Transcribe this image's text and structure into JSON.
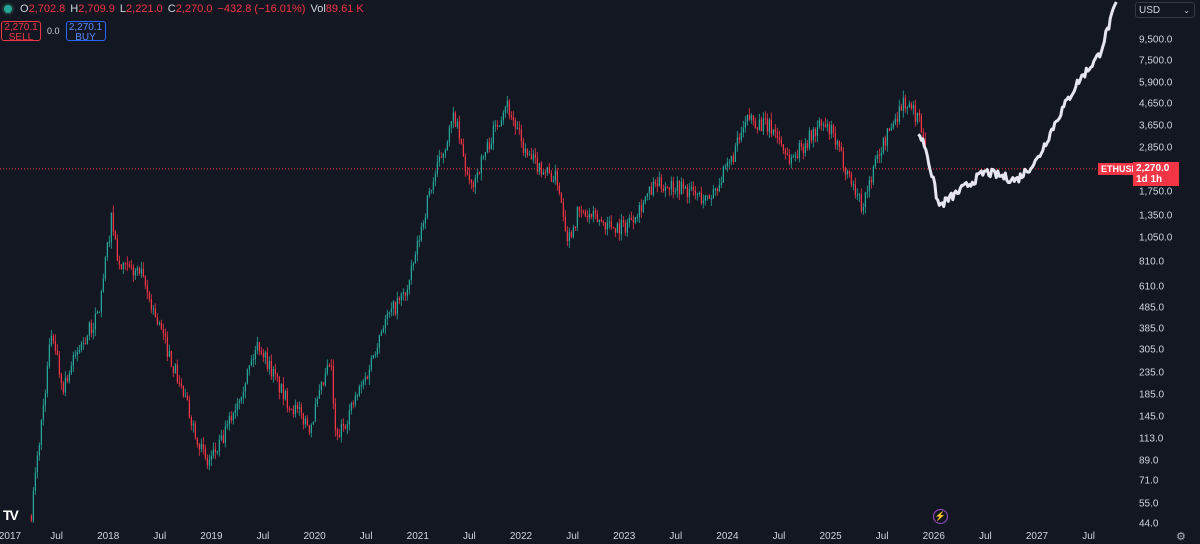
{
  "legend": {
    "open_label": "O",
    "open": "2,702.8",
    "high_label": "H",
    "high": "2,709.9",
    "low_label": "L",
    "low": "2,221.0",
    "close_label": "C",
    "close": "2,270.0",
    "change": "−432.8 (−16.01%)",
    "vol_label": "Vol",
    "vol": "89.61 K"
  },
  "trade": {
    "sell_price": "2,270.1",
    "sell_label": "SELL",
    "spread": "0.0",
    "buy_price": "2,270.1",
    "buy_label": "BUY"
  },
  "currency": "USD",
  "symbol_tag": "ETHUSD",
  "price_tag": "2,270.0",
  "countdown": "1d 1h",
  "colors": {
    "up": "#26a69a",
    "down": "#f23645",
    "projection": "#e6e6f0",
    "bg": "#131722"
  },
  "chart_data": {
    "type": "candlestick",
    "symbol": "ETHUSD",
    "scale": "log",
    "current_price": 2270,
    "y_ticks": [
      9500,
      7500,
      5900,
      4650,
      3650,
      2850,
      1750,
      1350,
      1050,
      810,
      610,
      485,
      385,
      305,
      235,
      185,
      145,
      113,
      89,
      71,
      55,
      44
    ],
    "y_tick_labels": [
      "9,500.0",
      "7,500.0",
      "5,900.0",
      "4,650.0",
      "3,650.0",
      "2,850.0",
      "1,750.0",
      "1,350.0",
      "1,050.0",
      "810.0",
      "610.0",
      "485.0",
      "385.0",
      "305.0",
      "235.0",
      "185.0",
      "145.0",
      "113.0",
      "89.0",
      "71.0",
      "55.0",
      "44.0"
    ],
    "x_ticks": [
      {
        "t": 2017.0,
        "label": "2017"
      },
      {
        "t": 2017.5,
        "label": "Jul"
      },
      {
        "t": 2018.0,
        "label": "2018"
      },
      {
        "t": 2018.5,
        "label": "Jul"
      },
      {
        "t": 2019.0,
        "label": "2019"
      },
      {
        "t": 2019.5,
        "label": "Jul"
      },
      {
        "t": 2020.0,
        "label": "2020"
      },
      {
        "t": 2020.5,
        "label": "Jul"
      },
      {
        "t": 2021.0,
        "label": "2021"
      },
      {
        "t": 2021.5,
        "label": "Jul"
      },
      {
        "t": 2022.0,
        "label": "2022"
      },
      {
        "t": 2022.5,
        "label": "Jul"
      },
      {
        "t": 2023.0,
        "label": "2023"
      },
      {
        "t": 2023.5,
        "label": "Jul"
      },
      {
        "t": 2024.0,
        "label": "2024"
      },
      {
        "t": 2024.5,
        "label": "Jul"
      },
      {
        "t": 2025.0,
        "label": "2025"
      },
      {
        "t": 2025.5,
        "label": "Jul"
      },
      {
        "t": 2026.0,
        "label": "2026"
      },
      {
        "t": 2026.5,
        "label": "Jul"
      },
      {
        "t": 2027.0,
        "label": "2027"
      },
      {
        "t": 2027.5,
        "label": "Jul"
      }
    ],
    "history": [
      [
        2017.25,
        50
      ],
      [
        2017.45,
        390
      ],
      [
        2017.55,
        200
      ],
      [
        2017.7,
        300
      ],
      [
        2017.9,
        450
      ],
      [
        2018.03,
        1350
      ],
      [
        2018.1,
        750
      ],
      [
        2018.3,
        720
      ],
      [
        2018.45,
        450
      ],
      [
        2018.7,
        200
      ],
      [
        2018.95,
        85
      ],
      [
        2019.1,
        110
      ],
      [
        2019.45,
        330
      ],
      [
        2019.7,
        180
      ],
      [
        2019.95,
        130
      ],
      [
        2020.15,
        270
      ],
      [
        2020.2,
        110
      ],
      [
        2020.5,
        230
      ],
      [
        2020.65,
        400
      ],
      [
        2020.9,
        600
      ],
      [
        2021.1,
        1700
      ],
      [
        2021.35,
        4100
      ],
      [
        2021.5,
        1800
      ],
      [
        2021.85,
        4800
      ],
      [
        2022.05,
        2600
      ],
      [
        2022.35,
        2000
      ],
      [
        2022.45,
        1050
      ],
      [
        2022.55,
        1400
      ],
      [
        2022.9,
        1200
      ],
      [
        2023.0,
        1200
      ],
      [
        2023.3,
        1900
      ],
      [
        2023.5,
        1900
      ],
      [
        2023.8,
        1600
      ],
      [
        2024.0,
        2300
      ],
      [
        2024.2,
        4000
      ],
      [
        2024.45,
        3500
      ],
      [
        2024.6,
        2500
      ],
      [
        2024.9,
        3700
      ],
      [
        2025.0,
        3400
      ],
      [
        2025.3,
        1500
      ],
      [
        2025.45,
        2600
      ],
      [
        2025.6,
        3800
      ],
      [
        2025.7,
        4800
      ],
      [
        2025.85,
        4000
      ],
      [
        2025.92,
        3000
      ]
    ],
    "projection": [
      [
        2025.85,
        3400
      ],
      [
        2025.92,
        2900
      ],
      [
        2026.05,
        1500
      ],
      [
        2026.2,
        1700
      ],
      [
        2026.5,
        2200
      ],
      [
        2026.8,
        2000
      ],
      [
        2027.0,
        2500
      ],
      [
        2027.2,
        4000
      ],
      [
        2027.4,
        6000
      ],
      [
        2027.6,
        8000
      ],
      [
        2027.78,
        14800
      ]
    ]
  }
}
